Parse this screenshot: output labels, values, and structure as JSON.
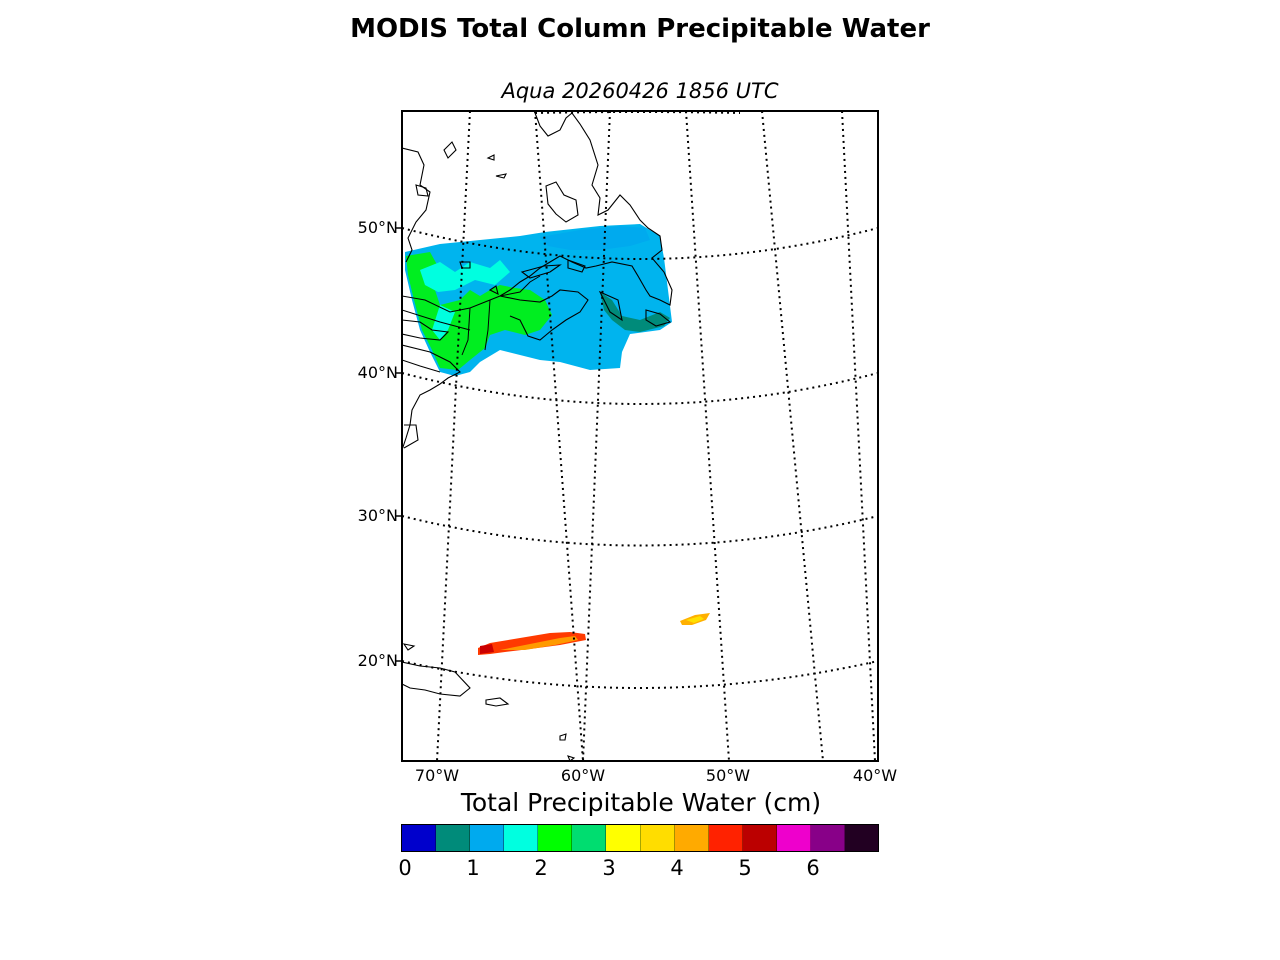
{
  "title": "MODIS Total Column Precipitable Water",
  "subtitle": "Aqua 20260426 1856 UTC",
  "map": {
    "lat_labels": [
      "50°N",
      "40°N",
      "30°N",
      "20°N"
    ],
    "lon_labels": [
      "70°W",
      "60°W",
      "50°W",
      "40°W"
    ]
  },
  "colorbar": {
    "title": "Total Precipitable Water (cm)",
    "ticks": [
      "0",
      "1",
      "2",
      "3",
      "4",
      "5",
      "6"
    ],
    "colors": [
      "#0000cc",
      "#008b7a",
      "#00aaee",
      "#00ffe0",
      "#00ff00",
      "#00dd70",
      "#ffff00",
      "#ffdd00",
      "#ffaa00",
      "#ff2200",
      "#bb0000",
      "#ee00cc",
      "#880088",
      "#220022"
    ]
  }
}
